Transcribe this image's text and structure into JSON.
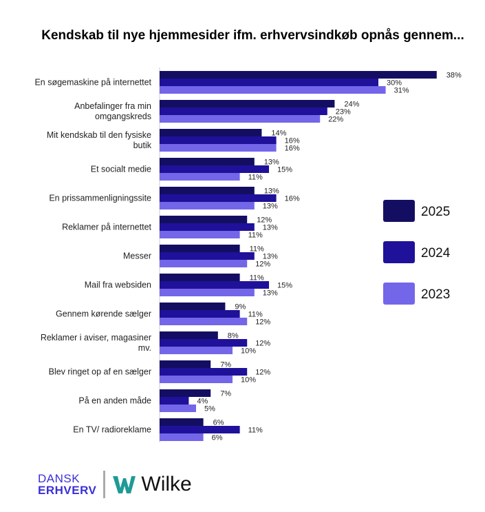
{
  "chart_data": {
    "type": "bar",
    "orientation": "horizontal",
    "title": "Kendskab til nye hjemmesider ifm. erhvervsindkøb opnås gennem...",
    "categories": [
      [
        "En søgemaskine på internettet"
      ],
      [
        "Anbefalinger fra min",
        "omgangskreds"
      ],
      [
        "Mit kendskab til den fysiske",
        "butik"
      ],
      [
        "Et socialt medie"
      ],
      [
        "En prissammenligningssite"
      ],
      [
        "Reklamer på internettet"
      ],
      [
        "Messer"
      ],
      [
        "Mail fra websiden"
      ],
      [
        "Gennem kørende sælger"
      ],
      [
        "Reklamer i  aviser, magasiner",
        "mv."
      ],
      [
        "Blev ringet op af en sælger"
      ],
      [
        "På en anden måde"
      ],
      [
        "En TV/ radioreklame"
      ]
    ],
    "series": [
      {
        "name": "2025",
        "color": "#140e63",
        "values": [
          38,
          24,
          14,
          13,
          13,
          12,
          11,
          11,
          9,
          8,
          7,
          7,
          6
        ]
      },
      {
        "name": "2024",
        "color": "#1f1199",
        "values": [
          30,
          23,
          16,
          15,
          16,
          13,
          13,
          15,
          11,
          12,
          12,
          4,
          11
        ]
      },
      {
        "name": "2023",
        "color": "#7466e8",
        "values": [
          31,
          22,
          16,
          11,
          13,
          11,
          12,
          13,
          12,
          10,
          10,
          5,
          6
        ]
      }
    ],
    "value_suffix": "%",
    "legend_position": "right",
    "grid": false
  },
  "logos": {
    "left": [
      "DANSK",
      "ERHVERV"
    ],
    "right": "Wilke"
  }
}
